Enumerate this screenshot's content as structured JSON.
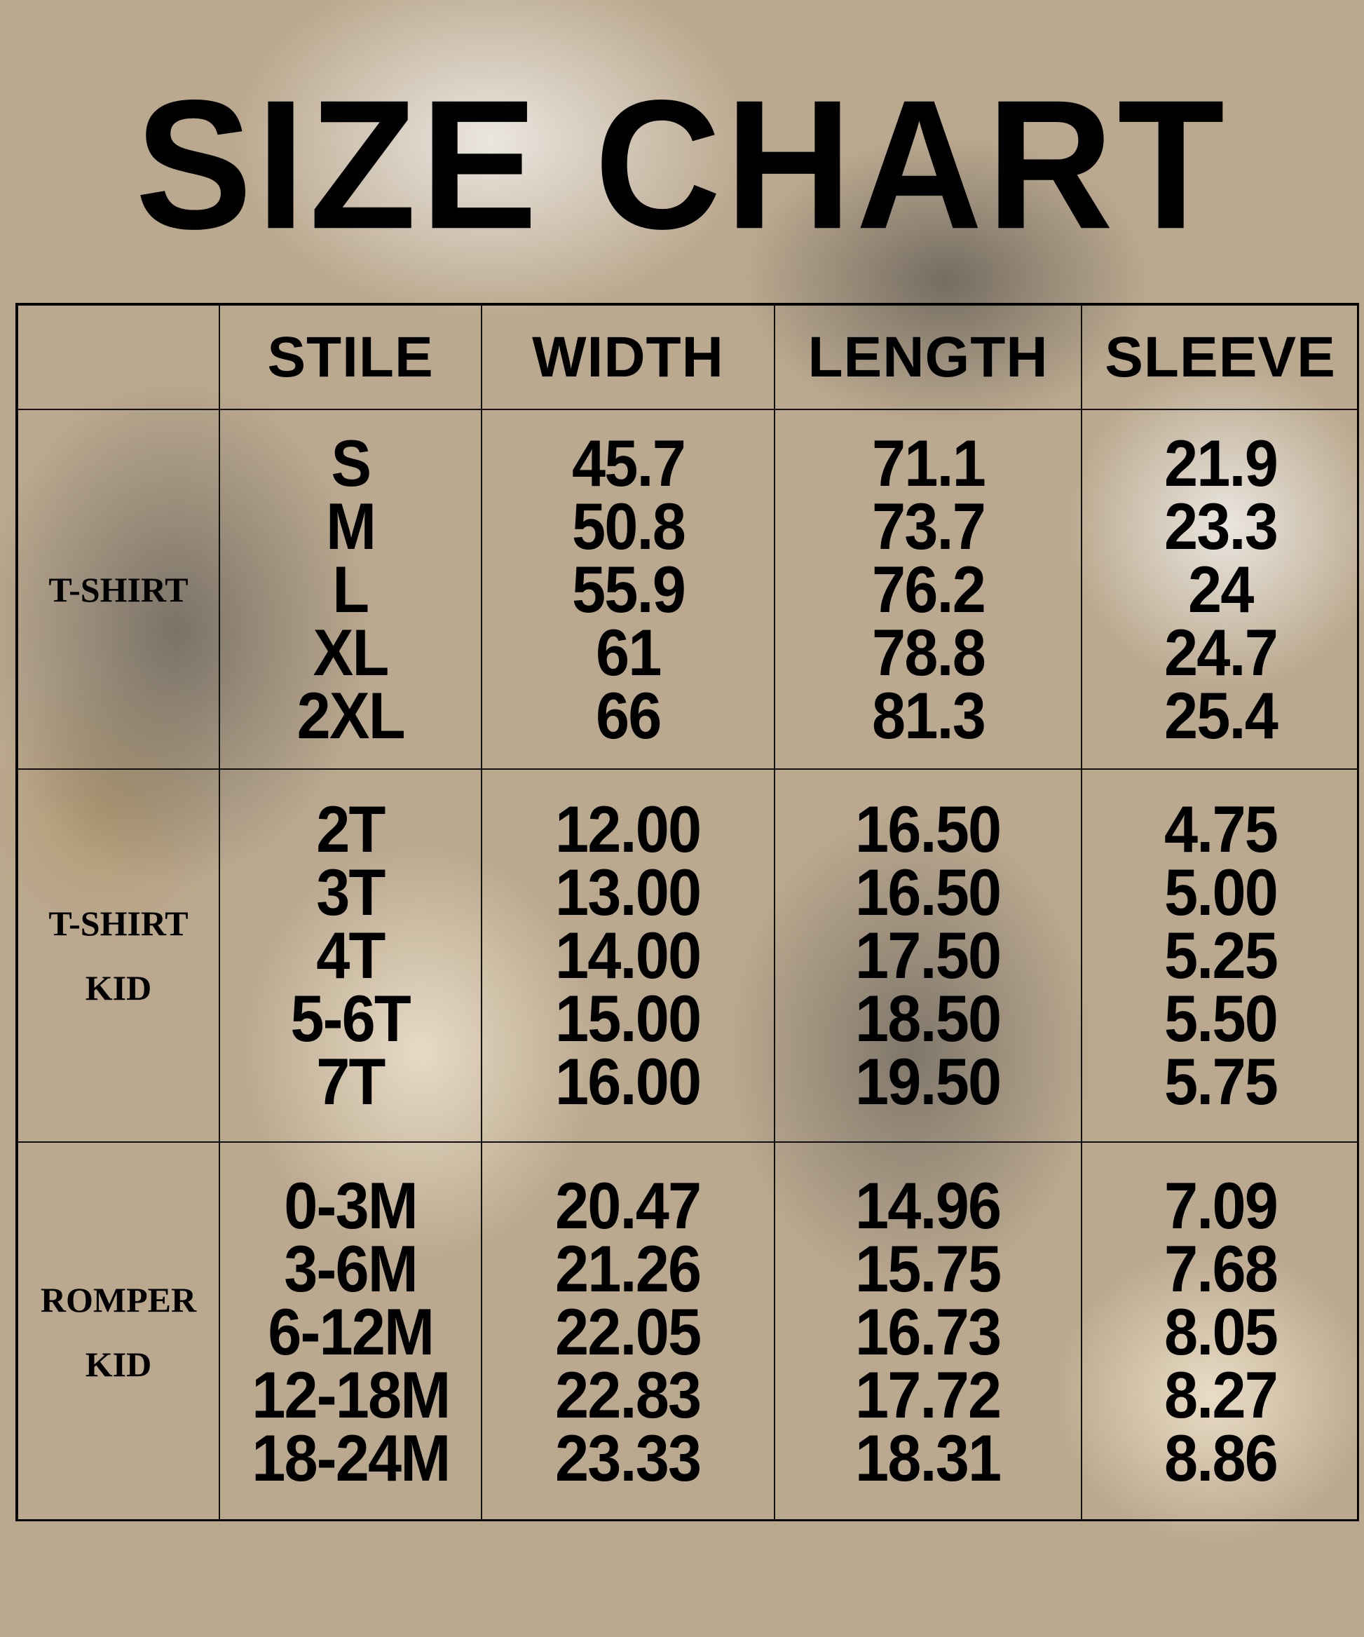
{
  "title": "SIZE CHART",
  "headers": [
    "STILE",
    "WIDTH",
    "LENGTH",
    "SLEEVE"
  ],
  "sections": [
    {
      "label_lines": [
        "T-SHIRT"
      ],
      "sizes": [
        "S",
        "M",
        "L",
        "XL",
        "2XL"
      ],
      "width": [
        "45.7",
        "50.8",
        "55.9",
        "61",
        "66"
      ],
      "length": [
        "71.1",
        "73.7",
        "76.2",
        "78.8",
        "81.3"
      ],
      "sleeve": [
        "21.9",
        "23.3",
        "24",
        "24.7",
        "25.4"
      ]
    },
    {
      "label_lines": [
        "T-SHIRT",
        "KID"
      ],
      "sizes": [
        "2T",
        "3T",
        "4T",
        "5-6T",
        "7T"
      ],
      "width": [
        "12.00",
        "13.00",
        "14.00",
        "15.00",
        "16.00"
      ],
      "length": [
        "16.50",
        "16.50",
        "17.50",
        "18.50",
        "19.50"
      ],
      "sleeve": [
        "4.75",
        "5.00",
        "5.25",
        "5.50",
        "5.75"
      ]
    },
    {
      "label_lines": [
        "ROMPER",
        "KID"
      ],
      "sizes": [
        "0-3M",
        "3-6M",
        "6-12M",
        "12-18M",
        "18-24M"
      ],
      "width": [
        "20.47",
        "21.26",
        "22.05",
        "22.83",
        "23.33"
      ],
      "length": [
        "14.96",
        "15.75",
        "16.73",
        "17.72",
        "18.31"
      ],
      "sleeve": [
        "7.09",
        "7.68",
        "8.05",
        "8.27",
        "8.86"
      ]
    }
  ]
}
